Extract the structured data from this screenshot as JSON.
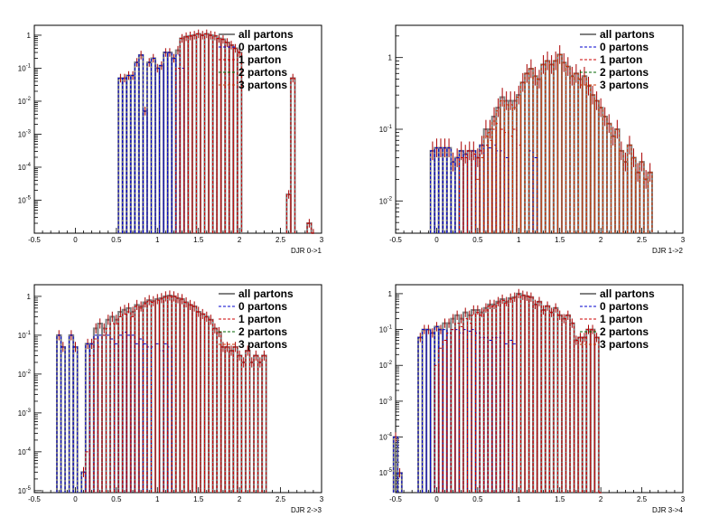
{
  "window": {
    "background": "#ffffff"
  },
  "colors": {
    "all_partons": "#808080",
    "0_partons": "#0000cc",
    "1_parton": "#cc0000",
    "2_partons": "#006600",
    "3_partons": "#cc3300",
    "errorbar": "#aa0000"
  },
  "legend_labels": [
    "all partons",
    "0 partons",
    "1 parton",
    "2 partons",
    "3 partons"
  ],
  "chart_data": [
    {
      "type": "line",
      "xlabel": "DJR 0->1",
      "xlim": [
        -0.5,
        3
      ],
      "ylim_log10": [
        -6,
        0.3
      ],
      "yscale": "log",
      "x_ticks": [
        "-0.5",
        "0",
        "0.5",
        "1",
        "1.5",
        "2",
        "2.5",
        "3"
      ],
      "y_ticks": [
        "1",
        "10^-1",
        "10^-2",
        "10^-3",
        "10^-4",
        "10^-5"
      ],
      "legend_placement": "top-right",
      "bin_width": 0.05,
      "series": [
        {
          "name": "all partons",
          "x": [
            0.55,
            0.6,
            0.65,
            0.7,
            0.75,
            0.8,
            0.85,
            0.9,
            0.95,
            1.0,
            1.05,
            1.1,
            1.15,
            1.2,
            1.25,
            1.3,
            1.35,
            1.4,
            1.45,
            1.5,
            1.55,
            1.6,
            1.65,
            1.7,
            1.75,
            1.8,
            1.85,
            1.9,
            1.95,
            2.0,
            2.6,
            2.65,
            2.85,
            2.9
          ],
          "y": [
            0.05,
            0.05,
            0.06,
            0.06,
            0.15,
            0.25,
            0.005,
            0.15,
            0.2,
            0.1,
            0.12,
            0.3,
            0.3,
            0.2,
            0.35,
            0.8,
            0.9,
            0.95,
            1.0,
            1.1,
            1.0,
            1.1,
            1.0,
            0.95,
            0.8,
            0.75,
            0.6,
            0.5,
            0.4,
            0.3,
            1.5e-05,
            0.05,
            2e-06,
            1e-06
          ]
        },
        {
          "name": "0 partons",
          "x": [
            0.55,
            0.6,
            0.65,
            0.7,
            0.75,
            0.8,
            0.85,
            0.9,
            0.95,
            1.0,
            1.05,
            1.1,
            1.15,
            1.2,
            1.25,
            1.3
          ],
          "y": [
            0.05,
            0.05,
            0.06,
            0.06,
            0.15,
            0.25,
            0.005,
            0.15,
            0.2,
            0.1,
            0.12,
            0.3,
            0.3,
            0.2,
            0.25,
            0.1
          ]
        },
        {
          "name": "1 parton",
          "x": [
            1.25,
            1.3,
            1.35,
            1.4,
            1.45,
            1.5,
            1.55,
            1.6,
            1.65,
            1.7,
            1.75,
            1.8,
            1.85,
            1.9,
            1.95,
            2.0,
            2.6,
            2.65,
            2.85,
            2.9
          ],
          "y": [
            0.1,
            0.8,
            0.9,
            0.95,
            1.0,
            1.1,
            1.0,
            1.1,
            1.0,
            0.95,
            0.8,
            0.75,
            0.6,
            0.5,
            0.4,
            0.3,
            1.5e-05,
            0.05,
            2e-06,
            1e-06
          ]
        }
      ]
    },
    {
      "type": "line",
      "xlabel": "DJR 1->2",
      "xlim": [
        -0.5,
        3
      ],
      "ylim_log10": [
        -2.45,
        0.45
      ],
      "yscale": "log",
      "x_ticks": [
        "-0.5",
        "0",
        "0.5",
        "1",
        "1.5",
        "2",
        "2.5",
        "3"
      ],
      "y_ticks": [
        "1",
        "10^-1",
        "10^-2"
      ],
      "legend_placement": "top-right",
      "bin_width": 0.05,
      "series": [
        {
          "name": "all partons",
          "x": [
            -0.05,
            0.0,
            0.05,
            0.1,
            0.15,
            0.2,
            0.25,
            0.3,
            0.35,
            0.4,
            0.45,
            0.5,
            0.55,
            0.6,
            0.65,
            0.7,
            0.75,
            0.8,
            0.85,
            0.9,
            0.95,
            1.0,
            1.05,
            1.1,
            1.15,
            1.2,
            1.25,
            1.3,
            1.35,
            1.4,
            1.45,
            1.5,
            1.55,
            1.6,
            1.65,
            1.7,
            1.75,
            1.8,
            1.85,
            1.9,
            1.95,
            2.0,
            2.05,
            2.1,
            2.15,
            2.2,
            2.25,
            2.3,
            2.35,
            2.4,
            2.45,
            2.5,
            2.55,
            2.6
          ],
          "y": [
            0.05,
            0.055,
            0.055,
            0.055,
            0.055,
            0.035,
            0.04,
            0.05,
            0.045,
            0.05,
            0.05,
            0.04,
            0.06,
            0.1,
            0.1,
            0.15,
            0.2,
            0.28,
            0.25,
            0.25,
            0.25,
            0.3,
            0.45,
            0.6,
            0.7,
            0.55,
            0.5,
            0.8,
            0.9,
            0.8,
            0.9,
            1.1,
            0.85,
            0.75,
            0.55,
            0.6,
            0.5,
            0.55,
            0.4,
            0.3,
            0.25,
            0.2,
            0.15,
            0.12,
            0.08,
            0.1,
            0.05,
            0.035,
            0.06,
            0.04,
            0.025,
            0.035,
            0.02,
            0.025
          ]
        },
        {
          "name": "0 partons",
          "x": [
            -0.05,
            0.0,
            0.05,
            0.1,
            0.15,
            0.2,
            0.25,
            0.3,
            0.35,
            0.4,
            0.45,
            0.5,
            0.55,
            0.6,
            0.65,
            0.7,
            0.75,
            0.8,
            0.85,
            1.15,
            1.2
          ],
          "y": [
            0.05,
            0.055,
            0.055,
            0.055,
            0.055,
            0.035,
            0.04,
            0.05,
            0.045,
            0.05,
            0.05,
            0.04,
            0.06,
            0.06,
            0.055,
            0.06,
            0.05,
            0.05,
            0.04,
            0.05,
            0.04
          ]
        },
        {
          "name": "1 parton",
          "x": [
            0.3,
            0.35,
            0.4,
            0.45,
            0.5,
            0.55,
            0.6,
            0.65,
            0.7,
            0.75,
            0.8,
            0.85,
            0.9,
            0.95,
            1.0
          ],
          "y": [
            0.04,
            0.04,
            0.05,
            0.045,
            0.04,
            0.05,
            0.06,
            0.07,
            0.1,
            0.12,
            0.1,
            0.09,
            0.08,
            0.1,
            0.06
          ]
        },
        {
          "name": "3 partons",
          "x": [
            0.5,
            0.55,
            0.6,
            0.65,
            0.7,
            0.75,
            0.8,
            0.85,
            0.9,
            0.95,
            1.0,
            1.05,
            1.1,
            1.15,
            1.2,
            1.25,
            1.3,
            1.35,
            1.4,
            1.45,
            1.5,
            1.55,
            1.6,
            1.65,
            1.7,
            1.75,
            1.8,
            1.85,
            1.9,
            1.95,
            2.0,
            2.05,
            2.1,
            2.15,
            2.2,
            2.25,
            2.3,
            2.35,
            2.4,
            2.45,
            2.5,
            2.55,
            2.6
          ],
          "y": [
            0.02,
            0.04,
            0.08,
            0.09,
            0.13,
            0.18,
            0.25,
            0.22,
            0.22,
            0.2,
            0.28,
            0.45,
            0.6,
            0.7,
            0.55,
            0.5,
            0.8,
            0.9,
            0.8,
            0.9,
            1.1,
            0.85,
            0.75,
            0.55,
            0.6,
            0.5,
            0.55,
            0.4,
            0.3,
            0.25,
            0.2,
            0.15,
            0.12,
            0.08,
            0.1,
            0.05,
            0.035,
            0.06,
            0.04,
            0.025,
            0.035,
            0.02,
            0.025
          ]
        }
      ]
    },
    {
      "type": "line",
      "xlabel": "DJR 2->3",
      "xlim": [
        -0.5,
        3
      ],
      "ylim_log10": [
        -5.05,
        0.3
      ],
      "yscale": "log",
      "x_ticks": [
        "-0.5",
        "0",
        "0.5",
        "1",
        "1.5",
        "2",
        "2.5",
        "3"
      ],
      "y_ticks": [
        "1",
        "10^-1",
        "10^-2",
        "10^-3",
        "10^-4",
        "10^-5"
      ],
      "legend_placement": "top-right",
      "bin_width": 0.05,
      "series": [
        {
          "name": "all partons",
          "x": [
            -0.2,
            -0.15,
            -0.05,
            0.0,
            0.1,
            0.15,
            0.2,
            0.25,
            0.3,
            0.35,
            0.4,
            0.45,
            0.5,
            0.55,
            0.6,
            0.65,
            0.7,
            0.75,
            0.8,
            0.85,
            0.9,
            0.95,
            1.0,
            1.05,
            1.1,
            1.15,
            1.2,
            1.25,
            1.3,
            1.35,
            1.4,
            1.45,
            1.5,
            1.55,
            1.6,
            1.65,
            1.7,
            1.75,
            1.8,
            1.85,
            1.9,
            1.95,
            2.0,
            2.05,
            2.1,
            2.15,
            2.2,
            2.25,
            2.3
          ],
          "y": [
            0.1,
            0.05,
            0.1,
            0.05,
            3e-05,
            0.06,
            0.06,
            0.15,
            0.2,
            0.15,
            0.25,
            0.3,
            0.25,
            0.4,
            0.45,
            0.5,
            0.4,
            0.6,
            0.55,
            0.7,
            0.8,
            0.75,
            0.85,
            0.9,
            1.0,
            1.05,
            1.0,
            0.9,
            0.85,
            0.7,
            0.6,
            0.55,
            0.4,
            0.35,
            0.3,
            0.25,
            0.15,
            0.12,
            0.05,
            0.05,
            0.04,
            0.05,
            0.03,
            0.02,
            0.04,
            0.02,
            0.03,
            0.02,
            0.03
          ]
        },
        {
          "name": "0 partons",
          "x": [
            -0.2,
            -0.15,
            -0.05,
            0.0,
            0.1,
            0.15,
            0.2,
            0.25,
            0.3,
            0.35,
            0.4,
            0.45,
            0.5,
            0.55,
            0.6,
            0.65,
            0.7,
            0.75,
            0.8,
            0.85,
            0.9,
            0.95,
            1.0,
            1.05,
            1.1,
            1.15
          ],
          "y": [
            0.1,
            0.05,
            0.1,
            0.05,
            3e-05,
            0.06,
            0.06,
            0.1,
            0.1,
            0.1,
            0.1,
            0.08,
            0.06,
            0.1,
            0.12,
            0.1,
            0.1,
            0.06,
            0.08,
            0.06,
            0.05,
            0.05,
            0.06,
            0.04,
            0.06,
            0.05
          ]
        },
        {
          "name": "1 parton",
          "x": [
            0.15,
            0.2,
            0.25,
            0.3,
            0.35,
            0.4,
            0.45,
            0.5,
            0.55,
            0.6,
            0.65,
            0.7,
            0.75,
            0.8,
            0.85,
            0.9,
            0.95,
            1.0,
            1.05,
            1.1,
            1.15,
            1.2,
            1.25,
            1.3,
            1.35,
            1.4,
            1.45,
            1.5,
            1.55,
            1.6,
            1.65,
            1.7,
            1.75,
            1.8,
            1.85,
            1.9,
            1.95,
            2.0,
            2.05,
            2.1,
            2.15,
            2.2,
            2.25,
            2.3
          ],
          "y": [
            0.0001,
            0.03,
            0.08,
            0.05,
            0.1,
            0.15,
            0.2,
            0.2,
            0.3,
            0.35,
            0.4,
            0.3,
            0.55,
            0.5,
            0.65,
            0.75,
            0.7,
            0.8,
            0.85,
            0.95,
            1.0,
            1.0,
            0.9,
            0.85,
            0.7,
            0.6,
            0.55,
            0.4,
            0.35,
            0.3,
            0.25,
            0.15,
            0.12,
            0.05,
            0.05,
            0.04,
            0.05,
            0.03,
            0.02,
            0.04,
            0.02,
            0.03,
            0.02,
            0.03
          ]
        }
      ]
    },
    {
      "type": "line",
      "xlabel": "DJR 3->4",
      "xlim": [
        -0.5,
        3
      ],
      "ylim_log10": [
        -5.55,
        0.25
      ],
      "yscale": "log",
      "x_ticks": [
        "-0.5",
        "0",
        "0.5",
        "1",
        "1.5",
        "2",
        "2.5",
        "3"
      ],
      "y_ticks": [
        "1",
        "10^-1",
        "10^-2",
        "10^-3",
        "10^-4",
        "10^-5"
      ],
      "legend_placement": "top-right",
      "bin_width": 0.05,
      "series": [
        {
          "name": "all partons",
          "x": [
            -0.5,
            -0.45,
            -0.2,
            -0.15,
            -0.1,
            -0.05,
            0.0,
            0.05,
            0.1,
            0.15,
            0.2,
            0.25,
            0.3,
            0.35,
            0.4,
            0.45,
            0.5,
            0.55,
            0.6,
            0.65,
            0.7,
            0.75,
            0.8,
            0.85,
            0.9,
            0.95,
            1.0,
            1.05,
            1.1,
            1.15,
            1.2,
            1.25,
            1.3,
            1.35,
            1.4,
            1.45,
            1.5,
            1.55,
            1.6,
            1.65,
            1.7,
            1.75,
            1.8,
            1.85,
            1.9,
            1.95,
            2.0
          ],
          "y": [
            0.0001,
            1e-05,
            0.06,
            0.1,
            0.1,
            0.08,
            0.12,
            0.1,
            0.15,
            0.15,
            0.2,
            0.25,
            0.2,
            0.3,
            0.25,
            0.35,
            0.35,
            0.3,
            0.4,
            0.5,
            0.5,
            0.6,
            0.7,
            0.6,
            0.75,
            0.8,
            1.0,
            0.9,
            0.85,
            0.8,
            0.5,
            0.6,
            0.35,
            0.45,
            0.3,
            0.4,
            0.25,
            0.2,
            0.25,
            0.15,
            0.05,
            0.06,
            0.06,
            0.1,
            0.1,
            0.06,
            2e-06
          ]
        },
        {
          "name": "0 partons",
          "x": [
            -0.5,
            -0.45,
            -0.2,
            -0.15,
            -0.1,
            -0.05,
            0.0,
            0.05,
            0.1,
            0.15,
            0.2,
            0.25,
            0.3,
            0.35,
            0.4,
            0.45,
            0.5,
            0.55,
            0.6,
            0.65,
            0.7,
            0.75,
            0.8,
            0.85,
            0.9,
            0.95
          ],
          "y": [
            0.0001,
            1e-05,
            0.06,
            0.1,
            0.1,
            0.08,
            0.12,
            0.1,
            0.1,
            0.08,
            0.1,
            0.1,
            0.08,
            0.1,
            0.09,
            0.1,
            0.08,
            0.06,
            0.06,
            0.05,
            0.06,
            0.06,
            0.08,
            0.04,
            0.05,
            0.04
          ]
        },
        {
          "name": "1 parton",
          "x": [
            0.0,
            0.05,
            0.1,
            0.15,
            0.2,
            0.25,
            0.3,
            0.35,
            0.4,
            0.45,
            0.5,
            0.55,
            0.6,
            0.65,
            0.7,
            0.75,
            0.8,
            0.85,
            0.9,
            0.95,
            1.0,
            1.05,
            1.1,
            1.15,
            1.2,
            1.25,
            1.3,
            1.35,
            1.4,
            1.45,
            1.5,
            1.55,
            1.6,
            1.65,
            1.7,
            1.75,
            1.8,
            1.85,
            1.9,
            1.95,
            2.0
          ],
          "y": [
            0.01,
            0.03,
            0.05,
            0.08,
            0.1,
            0.15,
            0.12,
            0.2,
            0.15,
            0.25,
            0.3,
            0.25,
            0.35,
            0.45,
            0.45,
            0.55,
            0.65,
            0.55,
            0.7,
            0.75,
            0.95,
            0.9,
            0.85,
            0.8,
            0.5,
            0.6,
            0.35,
            0.45,
            0.3,
            0.4,
            0.25,
            0.2,
            0.25,
            0.15,
            0.05,
            0.06,
            0.06,
            0.1,
            0.1,
            0.06,
            2e-06
          ]
        }
      ]
    }
  ]
}
